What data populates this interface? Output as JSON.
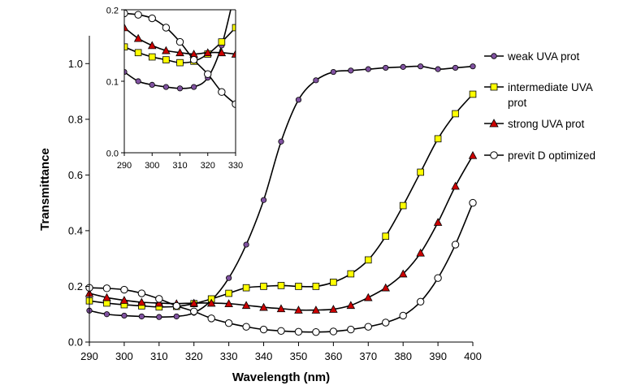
{
  "chart_data": [
    {
      "type": "line",
      "role": "main",
      "title": "",
      "xlabel": "Wavelength (nm)",
      "ylabel": "Transmittance",
      "xlim": [
        290,
        400
      ],
      "ylim": [
        0.0,
        1.1
      ],
      "xticks": [
        "290",
        "300",
        "310",
        "320",
        "330",
        "340",
        "350",
        "360",
        "370",
        "380",
        "390",
        "400"
      ],
      "yticks": [
        "0.0",
        "0.2",
        "0.4",
        "0.6",
        "0.8",
        "1.0"
      ],
      "grid": false,
      "legend_position": "right",
      "x": [
        290,
        295,
        300,
        305,
        310,
        315,
        320,
        325,
        330,
        335,
        340,
        345,
        350,
        355,
        360,
        365,
        370,
        375,
        380,
        385,
        390,
        395,
        400
      ],
      "series": [
        {
          "name": "weak UVA prot",
          "marker": "circle",
          "color": "#8052a0",
          "values": [
            0.113,
            0.1,
            0.095,
            0.092,
            0.09,
            0.092,
            0.105,
            0.15,
            0.23,
            0.35,
            0.51,
            0.72,
            0.87,
            0.94,
            0.97,
            0.975,
            0.98,
            0.985,
            0.988,
            0.99,
            0.98,
            0.985,
            0.99
          ]
        },
        {
          "name": "intermediate UVA prot",
          "marker": "square",
          "color": "#ffff00",
          "values": [
            0.148,
            0.14,
            0.134,
            0.13,
            0.126,
            0.128,
            0.138,
            0.155,
            0.175,
            0.195,
            0.2,
            0.203,
            0.2,
            0.2,
            0.215,
            0.245,
            0.295,
            0.38,
            0.49,
            0.61,
            0.73,
            0.82,
            0.89
          ]
        },
        {
          "name": "strong UVA prot",
          "marker": "triangle",
          "color": "#cc0000",
          "values": [
            0.175,
            0.16,
            0.15,
            0.143,
            0.14,
            0.138,
            0.14,
            0.14,
            0.138,
            0.132,
            0.125,
            0.12,
            0.115,
            0.115,
            0.118,
            0.132,
            0.16,
            0.195,
            0.245,
            0.32,
            0.43,
            0.56,
            0.67
          ]
        },
        {
          "name": "previt D optimized",
          "marker": "open-circle",
          "color": "#ffffff",
          "values": [
            0.195,
            0.193,
            0.188,
            0.175,
            0.155,
            0.13,
            0.11,
            0.085,
            0.068,
            0.055,
            0.045,
            0.04,
            0.037,
            0.036,
            0.038,
            0.045,
            0.055,
            0.07,
            0.095,
            0.145,
            0.23,
            0.35,
            0.5
          ]
        }
      ]
    },
    {
      "type": "line",
      "role": "inset",
      "title": "",
      "xlabel": "",
      "ylabel": "",
      "xlim": [
        290,
        330
      ],
      "ylim": [
        0.0,
        0.2
      ],
      "xticks": [
        "290",
        "300",
        "310",
        "320",
        "330"
      ],
      "yticks": [
        "0.0",
        "0.1",
        "0.2"
      ],
      "grid": false,
      "x": [
        290,
        295,
        300,
        305,
        310,
        315,
        320,
        325,
        330
      ],
      "series": [
        {
          "name": "weak UVA prot",
          "marker": "circle",
          "color": "#8052a0",
          "values": [
            0.113,
            0.1,
            0.095,
            0.092,
            0.09,
            0.092,
            0.105,
            0.15,
            0.23
          ]
        },
        {
          "name": "intermediate UVA prot",
          "marker": "square",
          "color": "#ffff00",
          "values": [
            0.148,
            0.14,
            0.134,
            0.13,
            0.126,
            0.128,
            0.138,
            0.155,
            0.175
          ]
        },
        {
          "name": "strong UVA prot",
          "marker": "triangle",
          "color": "#cc0000",
          "values": [
            0.175,
            0.16,
            0.15,
            0.143,
            0.14,
            0.138,
            0.14,
            0.14,
            0.138
          ]
        },
        {
          "name": "previt D optimized",
          "marker": "open-circle",
          "color": "#ffffff",
          "values": [
            0.195,
            0.193,
            0.188,
            0.175,
            0.155,
            0.13,
            0.11,
            0.085,
            0.068
          ]
        }
      ]
    }
  ],
  "legend": {
    "items": [
      {
        "line1": "weak UVA prot",
        "line2": ""
      },
      {
        "line1": "intermediate UVA",
        "line2": "prot"
      },
      {
        "line1": "strong UVA prot",
        "line2": ""
      },
      {
        "line1": "previt D optimized",
        "line2": ""
      }
    ]
  }
}
